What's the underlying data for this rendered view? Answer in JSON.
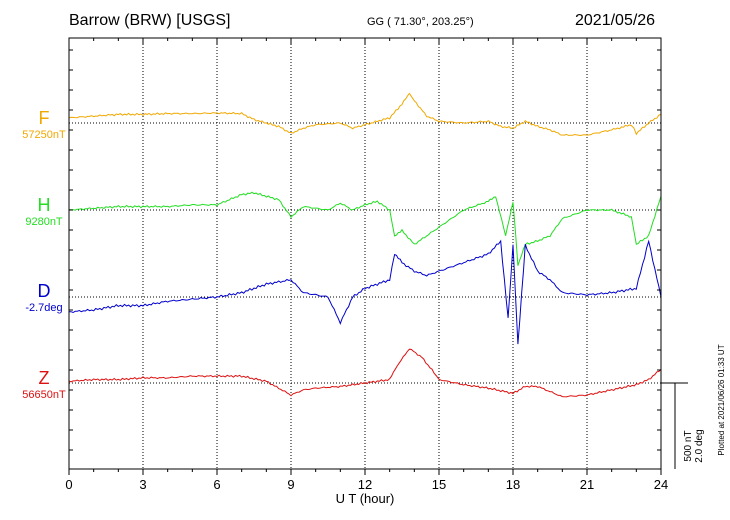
{
  "header": {
    "title": "Barrow (BRW)  [USGS]",
    "coords": "GG ( 71.30°, 203.25°)",
    "date": "2021/05/26"
  },
  "scale": {
    "line1": "500 nT",
    "line2": "2.0 deg"
  },
  "plotted_note": "Plotted at 2021/06/26 01:33 UT",
  "chart_data": {
    "type": "line",
    "xlabel": "U T (hour)",
    "xlim": [
      0,
      24
    ],
    "xticks": [
      "0",
      "3",
      "6",
      "9",
      "12",
      "15",
      "18",
      "21",
      "24"
    ],
    "grid": "dotted vertical at 3-hour intervals",
    "scale_bar": {
      "nT": 500,
      "deg": 2.0
    },
    "series": [
      {
        "name": "F",
        "baseline_label": "57250nT",
        "color": "#f0a800",
        "baseline_value": 57250,
        "unit": "nT",
        "x": [
          0,
          1,
          2,
          3,
          4,
          5,
          6,
          7,
          7.5,
          8,
          8.5,
          9,
          9.5,
          10,
          11,
          11.5,
          12,
          12.5,
          13,
          13.5,
          13.8,
          14,
          14.5,
          15,
          16,
          17,
          17.5,
          18,
          18.5,
          19,
          19.5,
          20,
          21,
          22,
          22.8,
          23,
          23.5,
          24
        ],
        "values": [
          30,
          40,
          50,
          50,
          55,
          55,
          58,
          55,
          20,
          0,
          -20,
          -60,
          -30,
          -10,
          0,
          -30,
          -10,
          10,
          30,
          110,
          170,
          130,
          40,
          10,
          0,
          10,
          -20,
          -30,
          10,
          -20,
          -40,
          -70,
          -70,
          -40,
          -10,
          -60,
          0,
          50
        ]
      },
      {
        "name": "H",
        "baseline_label": "9280nT",
        "color": "#22dd22",
        "baseline_value": 9280,
        "unit": "nT",
        "x": [
          0,
          1,
          2,
          3,
          4,
          5,
          6,
          7,
          7.5,
          8,
          8.5,
          9,
          9.5,
          10,
          10.5,
          11,
          11.5,
          12,
          12.5,
          13,
          13.2,
          13.5,
          14,
          14.5,
          15,
          15.5,
          16,
          17,
          17.3,
          17.7,
          18,
          18.2,
          18.5,
          19,
          19.5,
          20,
          21,
          22,
          22.8,
          23,
          23.5,
          24
        ],
        "values": [
          0,
          10,
          20,
          20,
          20,
          30,
          30,
          90,
          100,
          80,
          60,
          -40,
          20,
          10,
          0,
          40,
          0,
          30,
          50,
          0,
          -150,
          -120,
          -200,
          -150,
          -100,
          -50,
          0,
          50,
          80,
          -150,
          50,
          -320,
          -200,
          -180,
          -150,
          -50,
          0,
          0,
          -40,
          -200,
          -150,
          80
        ]
      },
      {
        "name": "D",
        "baseline_label": "-2.7deg",
        "color": "#0000cc",
        "baseline_value": -2.7,
        "unit": "deg",
        "x": [
          0,
          1,
          2,
          3,
          4,
          5,
          6,
          7,
          8,
          9,
          9.5,
          10,
          10.5,
          11,
          11.5,
          12,
          12.5,
          13,
          13.2,
          13.5,
          14,
          14.5,
          15,
          16,
          17,
          17.5,
          17.8,
          18,
          18.2,
          18.5,
          19,
          19.5,
          20,
          21,
          22,
          23,
          23.5,
          24
        ],
        "values": [
          -0.35,
          -0.3,
          -0.2,
          -0.2,
          -0.1,
          -0.05,
          0.0,
          0.1,
          0.3,
          0.4,
          0.1,
          0.05,
          0.0,
          -0.6,
          0.0,
          0.2,
          0.3,
          0.4,
          1.0,
          0.8,
          0.6,
          0.5,
          0.6,
          0.8,
          1.0,
          1.3,
          -0.5,
          1.2,
          -1.1,
          1.2,
          0.6,
          0.4,
          0.1,
          0.05,
          0.1,
          0.2,
          1.3,
          0.0
        ]
      },
      {
        "name": "Z",
        "baseline_label": "56650nT",
        "color": "#dd1111",
        "baseline_value": 56650,
        "unit": "nT",
        "x": [
          0,
          1,
          2,
          3,
          4,
          5,
          6,
          7,
          8,
          9,
          9.5,
          10,
          11,
          12,
          13,
          13.3,
          13.8,
          14.3,
          14.8,
          15,
          16,
          17,
          18,
          18.5,
          19,
          19.5,
          20,
          21,
          22,
          23,
          23.5,
          24
        ],
        "values": [
          10,
          20,
          20,
          30,
          30,
          40,
          40,
          40,
          10,
          -70,
          -40,
          -30,
          -20,
          0,
          20,
          100,
          200,
          150,
          60,
          20,
          -10,
          -30,
          -60,
          -20,
          -20,
          -50,
          -80,
          -70,
          -40,
          -10,
          20,
          80
        ]
      }
    ]
  }
}
